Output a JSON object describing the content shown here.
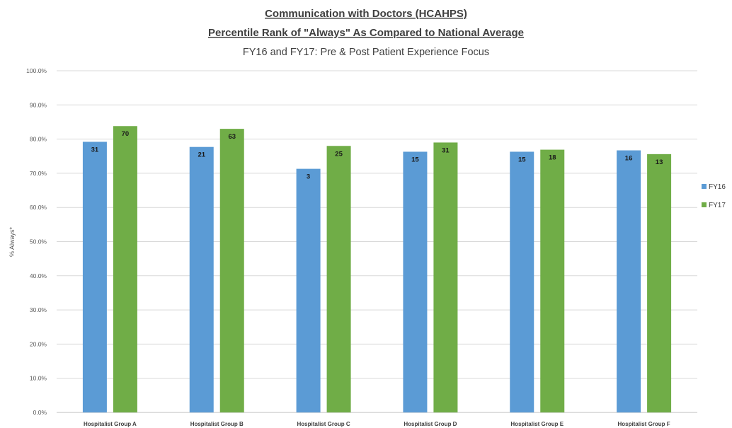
{
  "chart_data": {
    "type": "bar",
    "title": "Communication with Doctors (HCAHPS)",
    "subtitle": "Percentile Rank of \"Always\" As Compared to National Average",
    "subtitle2": "FY16 and FY17: Pre & Post Patient Experience Focus",
    "xlabel": "",
    "ylabel": "% Always*",
    "ylim": [
      0,
      100
    ],
    "yticks": [
      "0.0%",
      "10.0%",
      "20.0%",
      "30.0%",
      "40.0%",
      "50.0%",
      "60.0%",
      "70.0%",
      "80.0%",
      "90.0%",
      "100.0%"
    ],
    "grid": true,
    "legend_position": "right",
    "categories": [
      "Hospitalist Group A",
      "Hospitalist Group B",
      "Hospitalist Group C",
      "Hospitalist Group D",
      "Hospitalist Group E",
      "Hospitalist Group F"
    ],
    "series": [
      {
        "name": "FY16",
        "color": "#5b9bd5",
        "values": [
          79.2,
          77.7,
          71.3,
          76.3,
          76.3,
          76.7
        ],
        "labels": [
          "31",
          "21",
          "3",
          "15",
          "15",
          "16"
        ]
      },
      {
        "name": "FY17",
        "color": "#70ad47",
        "values": [
          83.8,
          83.0,
          78.0,
          79.0,
          76.9,
          75.6
        ],
        "labels": [
          "70",
          "63",
          "25",
          "31",
          "18",
          "13"
        ]
      }
    ]
  }
}
